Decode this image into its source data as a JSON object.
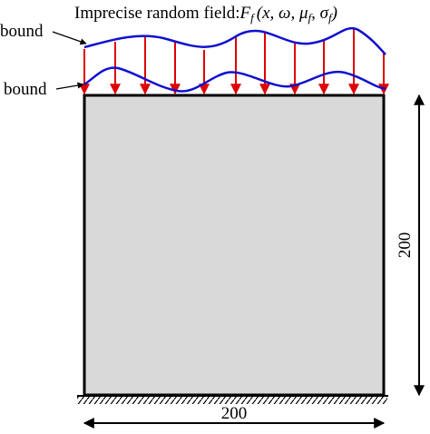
{
  "title": "Imprecise random field:",
  "formula": [
    "F",
    "f",
    "(x, ω, μ",
    "f",
    ", σ",
    "f",
    ")"
  ],
  "upper_bound_label": "bound",
  "lower_bound_label": "bound",
  "height_dimension": "200",
  "width_dimension": "200"
}
